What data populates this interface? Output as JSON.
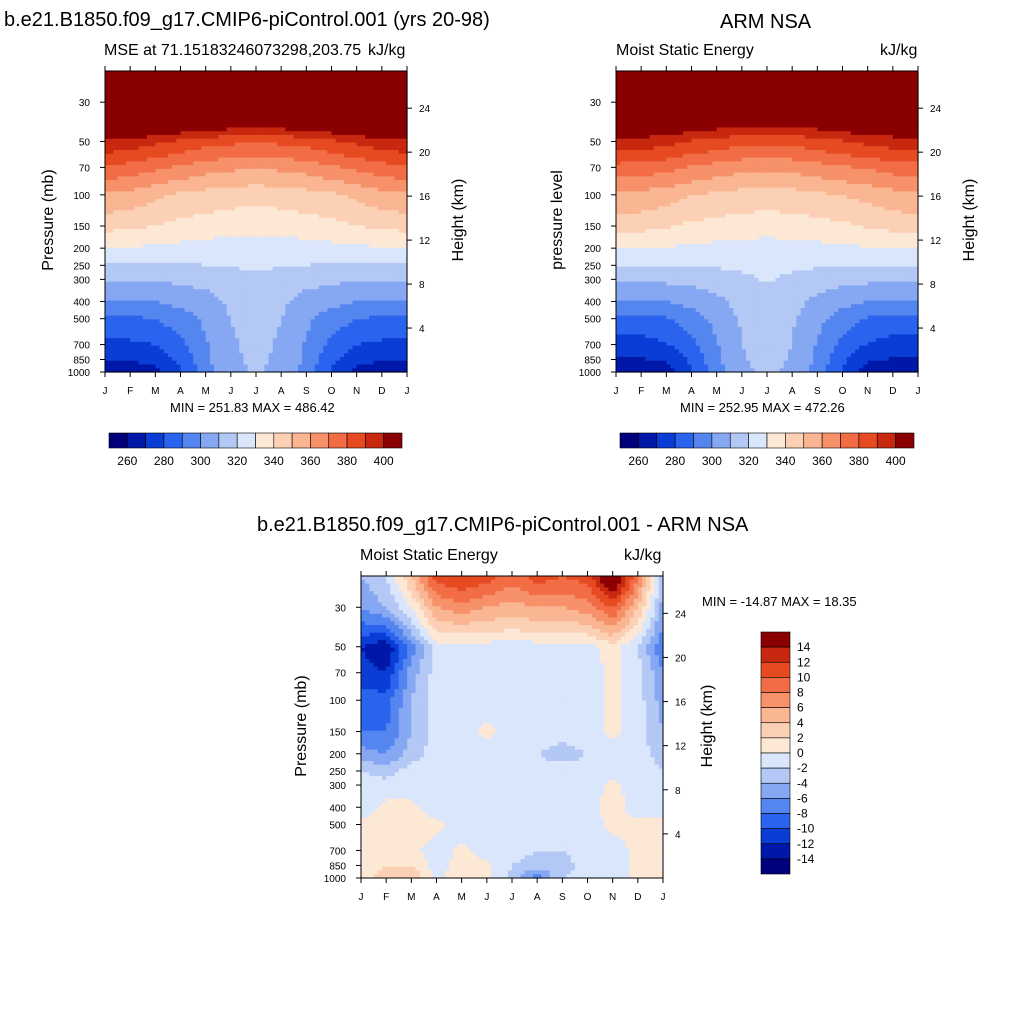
{
  "panels": {
    "p1": {
      "header": "b.e21.B1850.f09_g17.CMIP6-piControl.001 (yrs 20-98)",
      "left_title": "MSE at 71.15183246073298,203.75",
      "right_title": "kJ/kg",
      "ylabel": "Pressure (mb)",
      "y2label": "Height (km)",
      "stats": "MIN = 251.83 MAX = 486.42"
    },
    "p2": {
      "header": "ARM NSA",
      "left_title": "Moist Static Energy",
      "right_title": "kJ/kg",
      "ylabel": "pressure level",
      "y2label": "Height (km)",
      "stats": "MIN = 252.95 MAX = 472.26"
    },
    "p3": {
      "header": "b.e21.B1850.f09_g17.CMIP6-piControl.001 - ARM NSA",
      "left_title": "Moist Static Energy",
      "right_title": "kJ/kg",
      "ylabel": "Pressure (mb)",
      "y2label": "Height (km)",
      "stats": "MIN = -14.87 MAX =  18.35"
    }
  },
  "chart_data": [
    {
      "type": "heatmap",
      "title": "MSE at 71.15183246073298,203.75",
      "units": "kJ/kg",
      "xlabel": "",
      "ylabel": "Pressure (mb)",
      "y2label": "Height (km)",
      "x_tick_labels": [
        "J",
        "F",
        "M",
        "A",
        "M",
        "J",
        "J",
        "A",
        "S",
        "O",
        "N",
        "D",
        "J"
      ],
      "y_ticks": [
        30,
        50,
        70,
        100,
        150,
        200,
        250,
        300,
        400,
        500,
        700,
        850,
        1000
      ],
      "y_range": [
        20,
        1000
      ],
      "y_scale": "log",
      "y_reversed": true,
      "y2_ticks": [
        4,
        8,
        12,
        16,
        20,
        24
      ],
      "months": [
        1,
        2,
        3,
        4,
        5,
        6,
        7,
        8,
        9,
        10,
        11,
        12,
        13
      ],
      "pressure_levels": [
        20,
        30,
        50,
        70,
        100,
        150,
        200,
        250,
        300,
        400,
        500,
        700,
        850,
        1000
      ],
      "values": [
        [
          486,
          484,
          482,
          480,
          478,
          476,
          475,
          476,
          478,
          480,
          482,
          484,
          486
        ],
        [
          440,
          438,
          436,
          434,
          432,
          430,
          429,
          430,
          432,
          434,
          436,
          438,
          440
        ],
        [
          398,
          396,
          392,
          388,
          384,
          382,
          381,
          382,
          384,
          388,
          392,
          396,
          398
        ],
        [
          378,
          376,
          372,
          368,
          364,
          362,
          361,
          362,
          364,
          368,
          372,
          376,
          378
        ],
        [
          358,
          356,
          352,
          348,
          346,
          344,
          343,
          344,
          346,
          348,
          352,
          356,
          358
        ],
        [
          343,
          342,
          340,
          337,
          335,
          334,
          333,
          334,
          335,
          337,
          340,
          342,
          343
        ],
        [
          329,
          329,
          328,
          327,
          326,
          325,
          325,
          325,
          326,
          327,
          328,
          329,
          329
        ],
        [
          319,
          319,
          319,
          319,
          320,
          321,
          321,
          321,
          320,
          319,
          319,
          319,
          319
        ],
        [
          311,
          311,
          311,
          312,
          313,
          316,
          317,
          316,
          313,
          312,
          311,
          311,
          311
        ],
        [
          300,
          300,
          300,
          303,
          306,
          312,
          314,
          312,
          306,
          303,
          300,
          300,
          300
        ],
        [
          288,
          288,
          290,
          295,
          302,
          310,
          313,
          310,
          302,
          295,
          290,
          288,
          288
        ],
        [
          277,
          278,
          280,
          287,
          299,
          309,
          312,
          309,
          299,
          287,
          280,
          278,
          277
        ],
        [
          270,
          271,
          273,
          282,
          298,
          308,
          312,
          308,
          298,
          282,
          273,
          271,
          270
        ],
        [
          263,
          264,
          266,
          278,
          296,
          307,
          311,
          307,
          296,
          278,
          266,
          264,
          263
        ]
      ],
      "colorbar": {
        "levels": [
          250,
          260,
          270,
          280,
          290,
          300,
          310,
          320,
          330,
          340,
          350,
          360,
          370,
          380,
          390,
          400,
          410
        ],
        "labels": [
          "260",
          "280",
          "300",
          "320",
          "340",
          "360",
          "380",
          "400"
        ]
      },
      "stats": "MIN = 251.83 MAX = 486.42"
    },
    {
      "type": "heatmap",
      "title": "Moist Static Energy",
      "units": "kJ/kg",
      "xlabel": "",
      "ylabel": "pressure level",
      "y2label": "Height (km)",
      "x_tick_labels": [
        "J",
        "F",
        "M",
        "A",
        "M",
        "J",
        "J",
        "A",
        "S",
        "O",
        "N",
        "D",
        "J"
      ],
      "y_ticks": [
        30,
        50,
        70,
        100,
        150,
        200,
        250,
        300,
        400,
        500,
        700,
        850,
        1000
      ],
      "y_range": [
        20,
        1000
      ],
      "y_scale": "log",
      "y_reversed": true,
      "y2_ticks": [
        4,
        8,
        12,
        16,
        20,
        24
      ],
      "months": [
        1,
        2,
        3,
        4,
        5,
        6,
        7,
        8,
        9,
        10,
        11,
        12,
        13
      ],
      "pressure_levels": [
        20,
        30,
        50,
        70,
        100,
        150,
        200,
        250,
        300,
        400,
        500,
        700,
        850,
        1000
      ],
      "values": [
        [
          472,
          470,
          468,
          466,
          464,
          462,
          461,
          462,
          464,
          466,
          468,
          470,
          472
        ],
        [
          432,
          430,
          428,
          426,
          424,
          422,
          421,
          422,
          424,
          426,
          428,
          430,
          432
        ],
        [
          398,
          396,
          393,
          389,
          386,
          383,
          382,
          383,
          386,
          389,
          393,
          395,
          398
        ],
        [
          376,
          375,
          373,
          369,
          366,
          363,
          362,
          363,
          366,
          369,
          371,
          374,
          376
        ],
        [
          358,
          357,
          354,
          350,
          348,
          346,
          345,
          346,
          348,
          350,
          353,
          356,
          358
        ],
        [
          344,
          343,
          341,
          338,
          336,
          335,
          334,
          335,
          336,
          338,
          341,
          343,
          344
        ],
        [
          330,
          330,
          329,
          328,
          327,
          326,
          326,
          326,
          327,
          328,
          329,
          330,
          330
        ],
        [
          320,
          320,
          320,
          320,
          321,
          322,
          322,
          322,
          321,
          320,
          320,
          320,
          320
        ],
        [
          311,
          311,
          312,
          313,
          315,
          318,
          321,
          318,
          315,
          313,
          312,
          311,
          311
        ],
        [
          299,
          299,
          300,
          303,
          307,
          314,
          316,
          314,
          307,
          303,
          300,
          299,
          299
        ],
        [
          286,
          286,
          289,
          295,
          303,
          311,
          314,
          311,
          303,
          295,
          289,
          286,
          286
        ],
        [
          275,
          276,
          279,
          287,
          299,
          310,
          313,
          310,
          299,
          287,
          279,
          276,
          275
        ],
        [
          268,
          269,
          272,
          282,
          298,
          309,
          313,
          309,
          298,
          282,
          272,
          269,
          268
        ],
        [
          259,
          260,
          263,
          278,
          296,
          308,
          312,
          308,
          296,
          278,
          263,
          260,
          259
        ]
      ],
      "colorbar": {
        "levels": [
          250,
          260,
          270,
          280,
          290,
          300,
          310,
          320,
          330,
          340,
          350,
          360,
          370,
          380,
          390,
          400,
          410
        ],
        "labels": [
          "260",
          "280",
          "300",
          "320",
          "340",
          "360",
          "380",
          "400"
        ]
      },
      "stats": "MIN = 252.95 MAX = 472.26"
    },
    {
      "type": "heatmap",
      "title": "Moist Static Energy",
      "units": "kJ/kg",
      "xlabel": "",
      "ylabel": "Pressure (mb)",
      "y2label": "Height (km)",
      "x_tick_labels": [
        "J",
        "F",
        "M",
        "A",
        "M",
        "J",
        "J",
        "A",
        "S",
        "O",
        "N",
        "D",
        "J"
      ],
      "y_ticks": [
        30,
        50,
        70,
        100,
        150,
        200,
        250,
        300,
        400,
        500,
        700,
        850,
        1000
      ],
      "y_range": [
        20,
        1000
      ],
      "y_scale": "log",
      "y_reversed": true,
      "y2_ticks": [
        4,
        8,
        12,
        16,
        20,
        24
      ],
      "months": [
        1,
        2,
        3,
        4,
        5,
        6,
        7,
        8,
        9,
        10,
        11,
        12,
        13
      ],
      "pressure_levels": [
        20,
        30,
        50,
        70,
        100,
        150,
        200,
        250,
        300,
        400,
        500,
        700,
        850,
        1000
      ],
      "values": [
        [
          -4,
          -2,
          4,
          11,
          12,
          11,
          9,
          11,
          10,
          11,
          18,
          8,
          -3
        ],
        [
          -6,
          -4,
          0,
          6,
          7,
          6,
          5,
          6,
          6,
          7,
          10,
          4,
          -5
        ],
        [
          -12,
          -14,
          -7,
          -1,
          -1,
          -1,
          -1,
          -1,
          -1,
          -1,
          1,
          -2,
          -8
        ],
        [
          -11,
          -12,
          -5,
          -1,
          -2,
          -1,
          -1,
          -1,
          -1,
          -1,
          0.5,
          -1,
          -6
        ],
        [
          -9,
          -9,
          -4,
          -1,
          -1,
          -1,
          -1,
          -1,
          -1,
          -1,
          0.5,
          -1,
          -5
        ],
        [
          -8,
          -8,
          -4,
          -1,
          -1,
          0.5,
          -1,
          -1,
          -1,
          -1,
          0.5,
          -1,
          -4
        ],
        [
          -5,
          -6,
          -3,
          -1,
          -1,
          -1,
          -1,
          -2,
          -3,
          -2,
          -1,
          -1,
          -3
        ],
        [
          -2,
          -3,
          -1,
          -1,
          -1,
          -1,
          -1,
          -1,
          -1,
          -1,
          -1,
          -1,
          -2
        ],
        [
          -1,
          -1,
          -1,
          -1,
          -1,
          -1,
          -1,
          -1,
          -1,
          -1,
          0.5,
          -1,
          -1
        ],
        [
          -1,
          0.5,
          0.5,
          -1,
          -1,
          -1,
          -1,
          -2,
          -1,
          -1,
          1,
          -1,
          -1
        ],
        [
          0.5,
          0.5,
          1,
          0.5,
          -1,
          -1,
          -1,
          -2,
          -2,
          -1,
          0.5,
          0.5,
          0.5
        ],
        [
          0.5,
          1,
          0.5,
          -1,
          0.5,
          -1,
          -1,
          -2,
          -2,
          -1,
          -1,
          0.5,
          0.5
        ],
        [
          1,
          2,
          2,
          -1,
          1,
          0.5,
          -2,
          -3,
          -3,
          -1,
          -1,
          0.5,
          0.5
        ],
        [
          1,
          3,
          4,
          -1,
          2,
          1,
          -3,
          -7,
          -2,
          -1,
          -1,
          0.5,
          0.5
        ]
      ],
      "colorbar": {
        "levels": [
          -16,
          -14,
          -12,
          -10,
          -8,
          -6,
          -4,
          -2,
          0,
          2,
          4,
          6,
          8,
          10,
          12,
          14,
          16
        ],
        "labels": [
          "14",
          "12",
          "10",
          "8",
          "6",
          "4",
          "2",
          "0",
          "-2",
          "-4",
          "-6",
          "-8",
          "-10",
          "-12",
          "-14"
        ]
      },
      "stats": "MIN = -14.87 MAX =  18.35"
    }
  ]
}
